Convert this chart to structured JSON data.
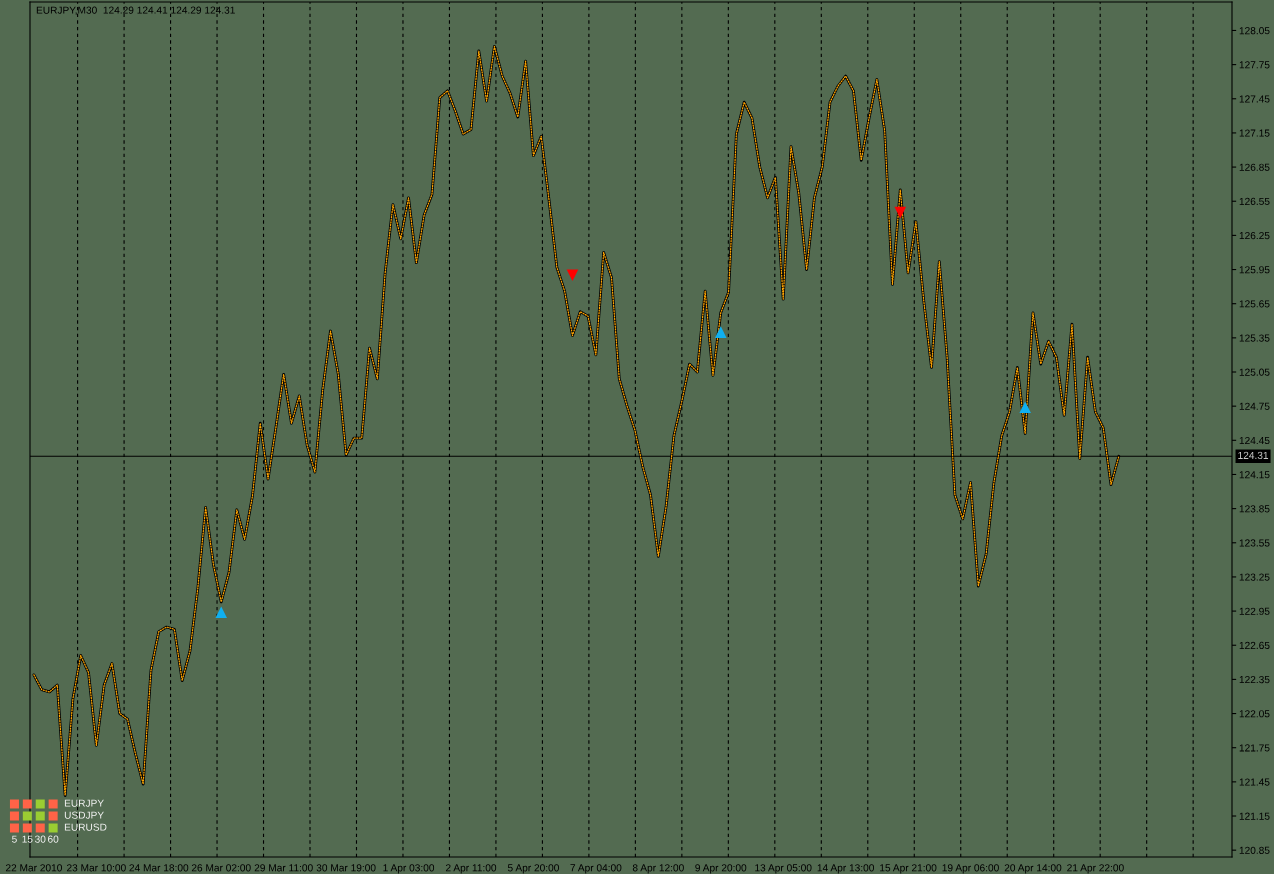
{
  "chart_data": [
    {
      "type": "line",
      "title": "EURJPY,M30  124.29 124.41 124.29 124.31",
      "categories": [
        "22 Mar 2010",
        null,
        null,
        null,
        null,
        null,
        null,
        null,
        "23 Mar 10:00",
        null,
        null,
        null,
        null,
        null,
        null,
        null,
        "24 Mar 18:00",
        null,
        null,
        null,
        null,
        null,
        null,
        null,
        "26 Mar 02:00",
        null,
        null,
        null,
        null,
        null,
        null,
        null,
        "29 Mar 11:00",
        null,
        null,
        null,
        null,
        null,
        null,
        null,
        "30 Mar 19:00",
        null,
        null,
        null,
        null,
        null,
        null,
        null,
        "1 Apr 03:00",
        null,
        null,
        null,
        null,
        null,
        null,
        null,
        "2 Apr 11:00",
        null,
        null,
        null,
        null,
        null,
        null,
        null,
        "5 Apr 20:00",
        null,
        null,
        null,
        null,
        null,
        null,
        null,
        "7 Apr 04:00",
        null,
        null,
        null,
        null,
        null,
        null,
        null,
        "8 Apr 12:00",
        null,
        null,
        null,
        null,
        null,
        null,
        null,
        "9 Apr 20:00",
        null,
        null,
        null,
        null,
        null,
        null,
        null,
        "13 Apr 05:00",
        null,
        null,
        null,
        null,
        null,
        null,
        null,
        "14 Apr 13:00",
        null,
        null,
        null,
        null,
        null,
        null,
        null,
        "15 Apr 21:00",
        null,
        null,
        null,
        null,
        null,
        null,
        null,
        "19 Apr 06:00",
        null,
        null,
        null,
        null,
        null,
        null,
        null,
        "20 Apr 14:00",
        null,
        null,
        null,
        null,
        null,
        null,
        null,
        "21 Apr 22:00",
        null,
        null,
        null,
        null,
        null,
        null,
        null,
        null,
        null,
        null,
        null,
        null,
        null,
        null,
        null,
        null,
        null
      ],
      "series": [
        {
          "color": "#000000",
          "line_style": "solid",
          "values": [
            122.39,
            122.26,
            122.24,
            122.3,
            121.33,
            122.18,
            122.56,
            122.41,
            121.77,
            122.3,
            122.49,
            122.05,
            122.0,
            121.7,
            121.43,
            122.43,
            122.77,
            122.81,
            122.79,
            122.34,
            122.6,
            123.15,
            123.86,
            123.36,
            123.03,
            123.29,
            123.84,
            123.58,
            123.96,
            124.6,
            124.11,
            124.56,
            125.03,
            124.6,
            124.84,
            124.41,
            124.17,
            124.89,
            125.41,
            125.03,
            124.32,
            124.47,
            124.47,
            125.26,
            124.99,
            125.92,
            126.52,
            126.22,
            126.58,
            126.01,
            126.43,
            126.61,
            127.46,
            127.52,
            127.34,
            127.14,
            127.18,
            127.87,
            127.43,
            127.91,
            127.65,
            127.5,
            127.29,
            127.78,
            126.95,
            127.12,
            126.56,
            125.97,
            125.76,
            125.37,
            125.58,
            125.54,
            125.2,
            126.1,
            125.88,
            124.99,
            124.75,
            124.54,
            124.22,
            123.97,
            123.43,
            123.87,
            124.49,
            124.79,
            125.12,
            125.05,
            125.76,
            125.02,
            125.57,
            125.75,
            127.14,
            127.42,
            127.28,
            126.85,
            126.58,
            126.76,
            125.69,
            127.03,
            126.62,
            125.95,
            126.58,
            126.85,
            127.42,
            127.56,
            127.65,
            127.52,
            126.91,
            127.28,
            127.62,
            127.17,
            125.82,
            126.65,
            125.92,
            126.37,
            125.68,
            125.09,
            126.02,
            125.18,
            123.97,
            123.76,
            124.08,
            123.17,
            123.45,
            124.08,
            124.49,
            124.7,
            125.09,
            124.51,
            125.57,
            125.12,
            125.32,
            125.18,
            124.67,
            125.47,
            124.29,
            125.18,
            124.7,
            124.56,
            124.06,
            124.31,
            null,
            null,
            null,
            null,
            null,
            null,
            null,
            null,
            null,
            null,
            null,
            null,
            null,
            null
          ]
        },
        {
          "color": "#ffa500",
          "line_style": "dotted",
          "values": [
            122.39,
            122.26,
            122.24,
            122.3,
            121.33,
            122.18,
            122.56,
            122.41,
            121.77,
            122.3,
            122.49,
            122.05,
            122.0,
            121.7,
            121.43,
            122.43,
            122.77,
            122.81,
            122.79,
            122.34,
            122.6,
            123.15,
            123.86,
            123.36,
            123.03,
            123.29,
            123.84,
            123.58,
            123.96,
            124.6,
            124.11,
            124.56,
            125.03,
            124.6,
            124.84,
            124.41,
            124.17,
            124.89,
            125.41,
            125.03,
            124.32,
            124.47,
            124.47,
            125.26,
            124.99,
            125.92,
            126.52,
            126.22,
            126.58,
            126.01,
            126.43,
            126.61,
            127.46,
            127.52,
            127.34,
            127.14,
            127.18,
            127.87,
            127.43,
            127.91,
            127.65,
            127.5,
            127.29,
            127.78,
            126.95,
            127.12,
            126.56,
            125.97,
            125.76,
            125.37,
            125.58,
            125.54,
            125.2,
            126.1,
            125.88,
            124.99,
            124.75,
            124.54,
            124.22,
            123.97,
            123.43,
            123.87,
            124.49,
            124.79,
            125.12,
            125.05,
            125.76,
            125.02,
            125.57,
            125.75,
            127.14,
            127.42,
            127.28,
            126.85,
            126.58,
            126.76,
            125.69,
            127.03,
            126.62,
            125.95,
            126.58,
            126.85,
            127.42,
            127.56,
            127.65,
            127.52,
            126.91,
            127.28,
            127.62,
            127.17,
            125.82,
            126.65,
            125.92,
            126.37,
            125.68,
            125.09,
            126.02,
            125.18,
            123.97,
            123.76,
            124.08,
            123.17,
            123.45,
            124.08,
            124.49,
            124.7,
            125.09,
            124.51,
            125.57,
            125.12,
            125.32,
            125.18,
            124.67,
            125.47,
            124.29,
            125.18,
            124.7,
            124.56,
            124.06,
            124.31,
            null,
            null,
            null,
            null,
            null,
            null,
            null,
            null,
            null,
            null,
            null,
            null,
            null,
            null
          ]
        },
        {
          "type": "scatter",
          "marker": "triangle",
          "color": "#10b0f0",
          "values": [
            null,
            null,
            null,
            null,
            null,
            null,
            null,
            null,
            null,
            null,
            null,
            null,
            null,
            null,
            null,
            null,
            null,
            null,
            null,
            null,
            null,
            null,
            null,
            null,
            122.94,
            null,
            null,
            null,
            null,
            null,
            null,
            null,
            null,
            null,
            null,
            null,
            null,
            null,
            null,
            null,
            null,
            null,
            null,
            null,
            null,
            null,
            null,
            null,
            null,
            null,
            null,
            null,
            null,
            null,
            null,
            null,
            null,
            null,
            null,
            null,
            null,
            null,
            null,
            null,
            null,
            null,
            null,
            null,
            null,
            null,
            null,
            null,
            null,
            null,
            null,
            null,
            null,
            null,
            null,
            null,
            null,
            null,
            null,
            null,
            null,
            null,
            null,
            null,
            125.4,
            null,
            null,
            null,
            null,
            null,
            null,
            null,
            null,
            null,
            null,
            null,
            null,
            null,
            null,
            null,
            null,
            null,
            null,
            null,
            null,
            null,
            null,
            null,
            null,
            null,
            null,
            null,
            null,
            null,
            null,
            null,
            null,
            null,
            null,
            null,
            null,
            null,
            null,
            124.74,
            null,
            null,
            null,
            null,
            null,
            null,
            null,
            null,
            null,
            null,
            null,
            null,
            null,
            null,
            null,
            null,
            null,
            null,
            null,
            null,
            null,
            null,
            null,
            null,
            null,
            null
          ]
        },
        {
          "type": "scatter",
          "marker": "triangle",
          "color": "#ff0000",
          "values": [
            null,
            null,
            null,
            null,
            null,
            null,
            null,
            null,
            null,
            null,
            null,
            null,
            null,
            null,
            null,
            null,
            null,
            null,
            null,
            null,
            null,
            null,
            null,
            null,
            null,
            null,
            null,
            null,
            null,
            null,
            null,
            null,
            null,
            null,
            null,
            null,
            null,
            null,
            null,
            null,
            null,
            null,
            null,
            null,
            null,
            null,
            null,
            null,
            null,
            null,
            null,
            null,
            null,
            null,
            null,
            null,
            null,
            null,
            null,
            null,
            null,
            null,
            null,
            null,
            null,
            null,
            null,
            null,
            null,
            125.9,
            null,
            null,
            null,
            null,
            null,
            null,
            null,
            null,
            null,
            null,
            null,
            null,
            null,
            null,
            null,
            null,
            null,
            null,
            null,
            null,
            null,
            null,
            null,
            null,
            null,
            null,
            null,
            null,
            null,
            null,
            null,
            null,
            null,
            null,
            null,
            null,
            null,
            null,
            null,
            null,
            null,
            126.45,
            null,
            null,
            null,
            null,
            null,
            null,
            null,
            null,
            null,
            null,
            null,
            null,
            null,
            null,
            null,
            null,
            null,
            null,
            null,
            null,
            null,
            null,
            null,
            null,
            null,
            null,
            null,
            null,
            null,
            null,
            null,
            null,
            null,
            null,
            null,
            null,
            null,
            null,
            null,
            null,
            null,
            null
          ]
        }
      ],
      "ylim": [
        120.79,
        128.3
      ],
      "yticks": [
        128.05,
        127.75,
        127.45,
        127.15,
        126.85,
        126.55,
        126.25,
        125.95,
        125.65,
        125.35,
        125.05,
        124.75,
        124.45,
        124.15,
        123.85,
        123.55,
        123.25,
        122.95,
        122.65,
        122.35,
        122.05,
        121.75,
        121.45,
        121.15,
        120.85
      ],
      "ref_lines": [
        {
          "axis": "y",
          "value": 124.31,
          "label": "124.31",
          "line_style": "solid",
          "color": "#000000"
        }
      ]
    },
    {
      "type": "other",
      "categories": [
        "5",
        "15",
        "30",
        "60"
      ],
      "y2_categories": [
        "EURJPY",
        "USDJPY",
        "EURUSD"
      ],
      "colors": [
        [
          "#ff6347",
          "#ff6347",
          "#9acd32",
          "#ff6347"
        ],
        [
          "#ff6347",
          "#9acd32",
          "#9acd32",
          "#ff6347"
        ],
        [
          "#ff6347",
          "#ff6347",
          "#ff6347",
          "#9acd32"
        ]
      ]
    }
  ]
}
